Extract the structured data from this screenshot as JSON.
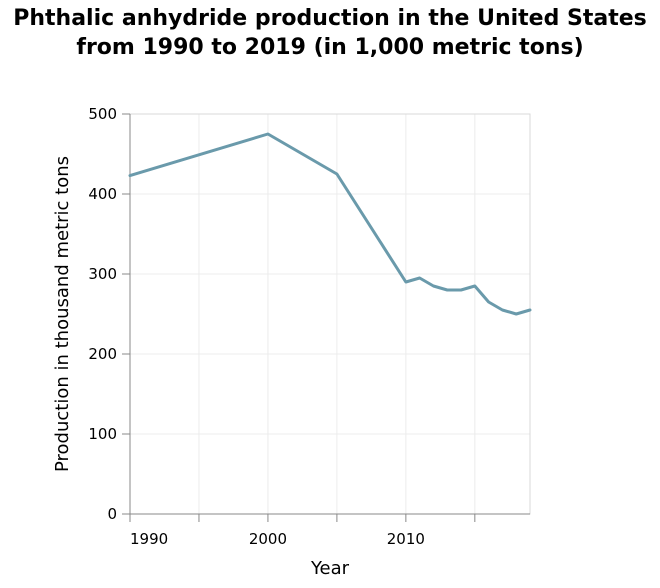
{
  "chart_data": {
    "type": "line",
    "title": "Phthalic anhydride production in the United States from 1990 to 2019 (in 1,000 metric tons)",
    "xlabel": "Year",
    "ylabel": "Production in thousand metric tons",
    "xlim": [
      1990,
      2019
    ],
    "ylim": [
      0,
      500
    ],
    "x_ticks": [
      1990,
      1995,
      2000,
      2005,
      2010,
      2015
    ],
    "x_tick_labels": [
      "1990",
      "",
      "2000",
      "",
      "2010",
      ""
    ],
    "y_ticks": [
      0,
      100,
      200,
      300,
      400,
      500
    ],
    "y_tick_labels": [
      "0",
      "100",
      "200",
      "300",
      "400",
      "500"
    ],
    "grid": true,
    "line_color": "#6a9aab",
    "series": [
      {
        "x": [
          1990,
          2000,
          2005,
          2010,
          2011,
          2012,
          2013,
          2014,
          2015,
          2016,
          2017,
          2018,
          2019
        ],
        "values": [
          423,
          475,
          425,
          290,
          295,
          285,
          280,
          280,
          285,
          265,
          255,
          250,
          255
        ]
      }
    ]
  }
}
